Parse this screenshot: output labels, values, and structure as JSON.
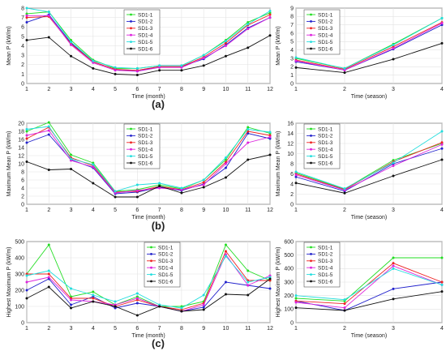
{
  "series_names": [
    "SD1-1",
    "SD1-2",
    "SD1-3",
    "SD1-4",
    "SD1-5",
    "SD1-6"
  ],
  "colors": [
    "#22dd22",
    "#2222cc",
    "#ee2222",
    "#dd22dd",
    "#22dddd",
    "#111111"
  ],
  "panel_labels": [
    "(a)",
    "(b)",
    "(c)"
  ],
  "chart_data": [
    {
      "type": "line",
      "id": "a-month",
      "xlabel": "Time (month)",
      "ylabel": "Mean P (kW/m)",
      "x": [
        1,
        2,
        3,
        4,
        5,
        6,
        7,
        8,
        9,
        10,
        11,
        12
      ],
      "xlim": [
        1,
        12
      ],
      "xticks": [
        1,
        2,
        3,
        4,
        5,
        6,
        7,
        8,
        9,
        10,
        11,
        12
      ],
      "ylim": [
        0,
        8
      ],
      "yticks": [
        0,
        1,
        2,
        3,
        4,
        5,
        6,
        7,
        8
      ],
      "grid": true,
      "legend": "top-center",
      "series": [
        {
          "name": "SD1-1",
          "values": [
            7.4,
            7.6,
            4.6,
            2.5,
            1.6,
            1.6,
            1.9,
            1.9,
            3.0,
            4.6,
            6.5,
            7.5
          ]
        },
        {
          "name": "SD1-2",
          "values": [
            6.5,
            7.3,
            4.3,
            2.3,
            1.5,
            1.3,
            1.8,
            1.8,
            2.6,
            4.1,
            5.9,
            7.0
          ]
        },
        {
          "name": "SD1-3",
          "values": [
            7.0,
            7.1,
            4.2,
            2.3,
            1.5,
            1.4,
            1.8,
            1.8,
            2.8,
            4.3,
            6.2,
            7.3
          ]
        },
        {
          "name": "SD1-4",
          "values": [
            7.2,
            7.2,
            4.1,
            2.2,
            1.4,
            1.3,
            1.7,
            1.7,
            2.7,
            4.0,
            5.8,
            7.0
          ]
        },
        {
          "name": "SD1-5",
          "values": [
            8.0,
            7.6,
            4.4,
            2.4,
            1.7,
            1.6,
            1.9,
            1.9,
            3.0,
            4.5,
            6.3,
            7.7
          ]
        },
        {
          "name": "SD1-6",
          "values": [
            4.6,
            4.9,
            2.9,
            1.6,
            1.0,
            0.9,
            1.4,
            1.4,
            1.9,
            2.9,
            3.8,
            5.1
          ]
        }
      ]
    },
    {
      "type": "line",
      "id": "a-season",
      "xlabel": "Time (season)",
      "ylabel": "Mean P (kW/m)",
      "x": [
        1,
        2,
        3,
        4
      ],
      "xlim": [
        1,
        4
      ],
      "xticks": [
        1,
        2,
        3,
        4
      ],
      "ylim": [
        0,
        9
      ],
      "yticks": [
        0,
        1,
        2,
        3,
        4,
        5,
        6,
        7,
        8,
        9
      ],
      "grid": true,
      "legend": "top-left",
      "series": [
        {
          "name": "SD1-1",
          "values": [
            3.0,
            1.8,
            4.7,
            7.8
          ]
        },
        {
          "name": "SD1-2",
          "values": [
            2.6,
            1.6,
            4.1,
            7.0
          ]
        },
        {
          "name": "SD1-3",
          "values": [
            2.8,
            1.7,
            4.4,
            7.3
          ]
        },
        {
          "name": "SD1-4",
          "values": [
            2.7,
            1.6,
            4.2,
            7.2
          ]
        },
        {
          "name": "SD1-5",
          "values": [
            3.1,
            1.8,
            4.6,
            7.8
          ]
        },
        {
          "name": "SD1-6",
          "values": [
            1.9,
            1.3,
            2.9,
            4.8
          ]
        }
      ]
    },
    {
      "type": "line",
      "id": "b-month",
      "xlabel": "Time (month)",
      "ylabel": "Maximum Mean P (kW/m)",
      "x": [
        1,
        2,
        3,
        4,
        5,
        6,
        7,
        8,
        9,
        10,
        11,
        12
      ],
      "xlim": [
        1,
        12
      ],
      "xticks": [
        1,
        2,
        3,
        4,
        5,
        6,
        7,
        8,
        9,
        10,
        11,
        12
      ],
      "ylim": [
        0,
        20
      ],
      "yticks": [
        0,
        2,
        4,
        6,
        8,
        10,
        12,
        14,
        16,
        18,
        20
      ],
      "grid": true,
      "legend": "top-center",
      "series": [
        {
          "name": "SD1-1",
          "values": [
            18.0,
            20.2,
            12.2,
            10.2,
            3.2,
            3.6,
            4.8,
            3.8,
            6.0,
            11.0,
            19.0,
            17.5
          ]
        },
        {
          "name": "SD1-2",
          "values": [
            15.2,
            17.2,
            11.0,
            9.0,
            2.6,
            3.0,
            4.2,
            3.4,
            5.0,
            9.0,
            17.5,
            16.2
          ]
        },
        {
          "name": "SD1-3",
          "values": [
            16.2,
            19.0,
            11.5,
            9.5,
            3.0,
            3.2,
            4.4,
            3.6,
            5.4,
            10.4,
            18.0,
            17.0
          ]
        },
        {
          "name": "SD1-4",
          "values": [
            17.0,
            18.2,
            10.8,
            9.2,
            2.8,
            3.4,
            4.0,
            3.6,
            4.8,
            10.0,
            15.2,
            16.6
          ]
        },
        {
          "name": "SD1-5",
          "values": [
            18.5,
            19.2,
            11.2,
            9.8,
            3.2,
            4.8,
            5.2,
            4.0,
            6.0,
            11.5,
            18.5,
            17.8
          ]
        },
        {
          "name": "SD1-6",
          "values": [
            10.5,
            8.5,
            8.7,
            5.2,
            1.8,
            1.8,
            4.5,
            2.8,
            4.2,
            6.6,
            11.0,
            12.2
          ]
        }
      ]
    },
    {
      "type": "line",
      "id": "b-season",
      "xlabel": "Time (season)",
      "ylabel": "Maximum Mean P (kW/m)",
      "x": [
        1,
        2,
        3,
        4
      ],
      "xlim": [
        1,
        4
      ],
      "xticks": [
        1,
        2,
        3,
        4
      ],
      "ylim": [
        0,
        16
      ],
      "yticks": [
        0,
        2,
        4,
        6,
        8,
        10,
        12,
        14,
        16
      ],
      "grid": true,
      "legend": "top-left",
      "series": [
        {
          "name": "SD1-1",
          "values": [
            6.2,
            3.0,
            8.7,
            12.0
          ]
        },
        {
          "name": "SD1-2",
          "values": [
            5.4,
            2.6,
            8.0,
            11.0
          ]
        },
        {
          "name": "SD1-3",
          "values": [
            6.0,
            2.9,
            8.4,
            12.2
          ]
        },
        {
          "name": "SD1-4",
          "values": [
            5.8,
            2.8,
            7.6,
            11.8
          ]
        },
        {
          "name": "SD1-5",
          "values": [
            6.4,
            3.1,
            8.2,
            14.4
          ]
        },
        {
          "name": "SD1-6",
          "values": [
            4.2,
            2.2,
            5.6,
            8.8
          ]
        }
      ]
    },
    {
      "type": "line",
      "id": "c-month",
      "xlabel": "Time (month)",
      "ylabel": "Highest Maximum P (kW/m)",
      "x": [
        1,
        2,
        3,
        4,
        5,
        6,
        7,
        8,
        9,
        10,
        11,
        12
      ],
      "xlim": [
        1,
        12
      ],
      "xticks": [
        1,
        2,
        3,
        4,
        5,
        6,
        7,
        8,
        9,
        10,
        11,
        12
      ],
      "ylim": [
        0,
        500
      ],
      "yticks": [
        0,
        100,
        200,
        300,
        400,
        500
      ],
      "grid": true,
      "legend": "top-center",
      "series": [
        {
          "name": "SD1-1",
          "values": [
            300,
            480,
            160,
            190,
            110,
            160,
            100,
            100,
            130,
            480,
            320,
            260
          ]
        },
        {
          "name": "SD1-2",
          "values": [
            200,
            270,
            110,
            160,
            90,
            120,
            100,
            70,
            95,
            250,
            230,
            210
          ]
        },
        {
          "name": "SD1-3",
          "values": [
            300,
            300,
            150,
            150,
            100,
            140,
            100,
            80,
            120,
            440,
            260,
            260
          ]
        },
        {
          "name": "SD1-4",
          "values": [
            250,
            280,
            140,
            130,
            110,
            150,
            100,
            70,
            110,
            420,
            230,
            290
          ]
        },
        {
          "name": "SD1-5",
          "values": [
            290,
            320,
            210,
            170,
            130,
            180,
            110,
            90,
            170,
            410,
            250,
            280
          ]
        },
        {
          "name": "SD1-6",
          "values": [
            150,
            220,
            90,
            130,
            100,
            45,
            100,
            70,
            80,
            175,
            170,
            270
          ]
        }
      ]
    },
    {
      "type": "line",
      "id": "c-season",
      "xlabel": "Time (season)",
      "ylabel": "Highest Maximum P (kW/m)",
      "x": [
        1,
        2,
        3,
        4
      ],
      "xlim": [
        1,
        4
      ],
      "xticks": [
        1,
        2,
        3,
        4
      ],
      "ylim": [
        0,
        600
      ],
      "yticks": [
        0,
        100,
        200,
        300,
        400,
        500,
        600
      ],
      "grid": true,
      "legend": "top-left",
      "series": [
        {
          "name": "SD1-1",
          "values": [
            180,
            160,
            480,
            480
          ]
        },
        {
          "name": "SD1-2",
          "values": [
            160,
            90,
            250,
            300
          ]
        },
        {
          "name": "SD1-3",
          "values": [
            160,
            140,
            440,
            300
          ]
        },
        {
          "name": "SD1-4",
          "values": [
            150,
            110,
            420,
            280
          ]
        },
        {
          "name": "SD1-5",
          "values": [
            200,
            170,
            400,
            280
          ]
        },
        {
          "name": "SD1-6",
          "values": [
            110,
            90,
            175,
            230
          ]
        }
      ]
    }
  ]
}
